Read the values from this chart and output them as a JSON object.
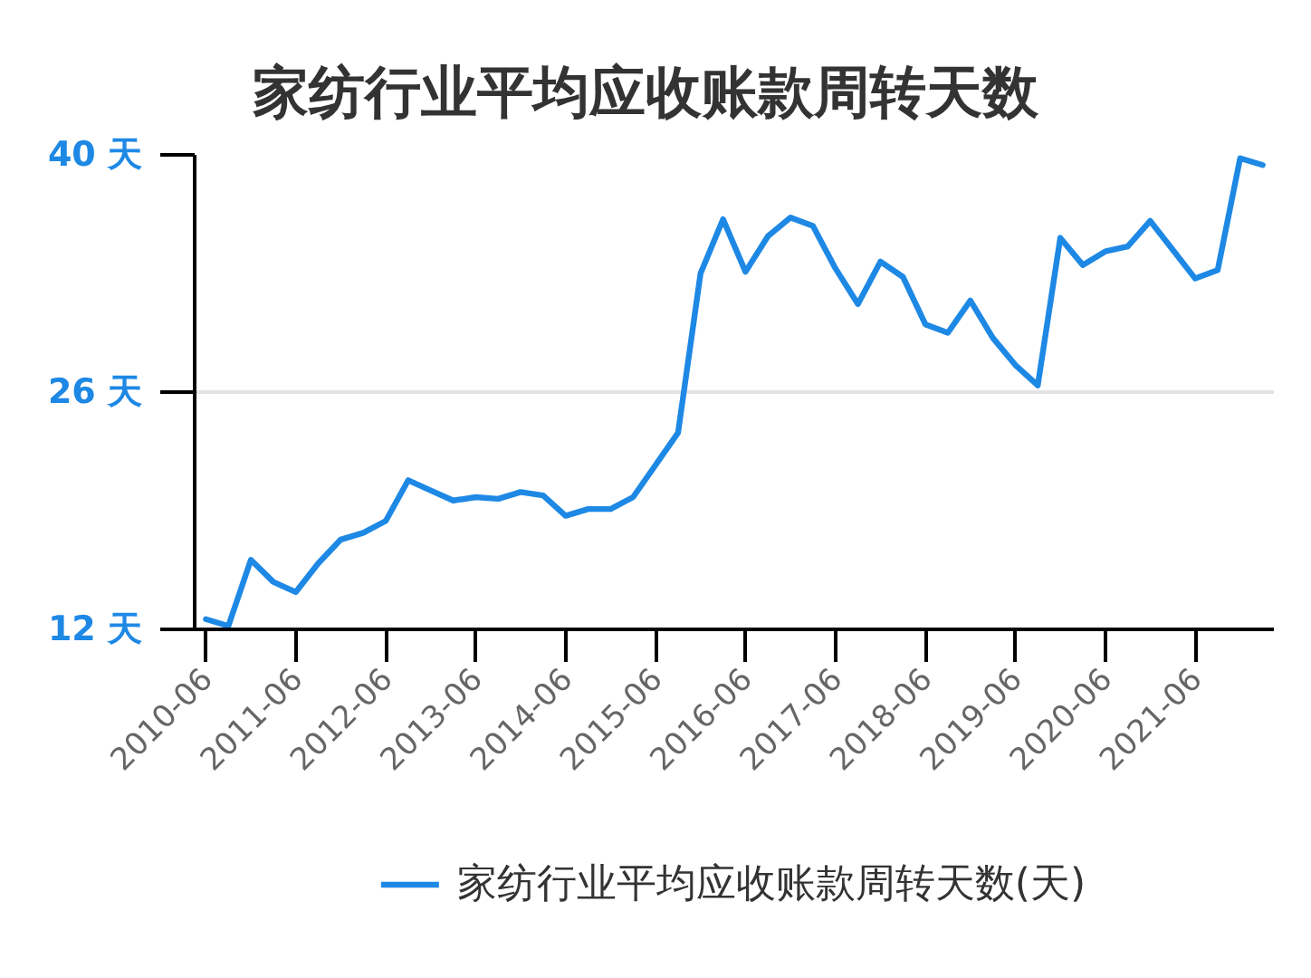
{
  "chart_data": {
    "type": "line",
    "title": "家纺行业平均应收账款周转天数",
    "categories": [
      "2010-06",
      null,
      null,
      null,
      "2011-06",
      null,
      null,
      null,
      "2012-06",
      null,
      null,
      null,
      "2013-06",
      null,
      null,
      null,
      "2014-06",
      null,
      null,
      null,
      "2015-06",
      null,
      null,
      null,
      "2016-06",
      null,
      null,
      null,
      "2017-06",
      null,
      null,
      null,
      "2018-06",
      null,
      null,
      null,
      "2019-06",
      null,
      null,
      null,
      "2020-06",
      null,
      null,
      null,
      "2021-06",
      null,
      null,
      null
    ],
    "series": [
      {
        "name": "家纺行业平均应收账款周转天数(天)",
        "color": "#1e88e5",
        "values": [
          12.6,
          12.2,
          16.1,
          14.8,
          14.2,
          15.9,
          17.3,
          17.7,
          18.4,
          20.8,
          20.2,
          19.6,
          19.8,
          19.7,
          20.1,
          19.9,
          18.7,
          19.1,
          19.1,
          19.8,
          21.7,
          23.6,
          33.0,
          36.2,
          33.1,
          35.2,
          36.3,
          35.8,
          33.3,
          31.2,
          33.7,
          32.8,
          30.0,
          29.5,
          31.4,
          29.2,
          27.6,
          26.4,
          35.1,
          33.5,
          34.3,
          34.6,
          36.1,
          34.4,
          32.7,
          33.2,
          39.8,
          39.4
        ]
      }
    ],
    "ylim": [
      12,
      40
    ],
    "yticks": [
      {
        "value": 12,
        "label": "12 天"
      },
      {
        "value": 26,
        "label": "26 天"
      },
      {
        "value": 40,
        "label": "40 天"
      }
    ],
    "grid": "y",
    "legend": "bottom"
  }
}
